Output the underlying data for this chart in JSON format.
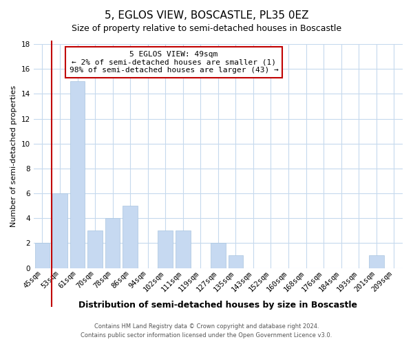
{
  "title": "5, EGLOS VIEW, BOSCASTLE, PL35 0EZ",
  "subtitle": "Size of property relative to semi-detached houses in Boscastle",
  "xlabel": "Distribution of semi-detached houses by size in Boscastle",
  "ylabel": "Number of semi-detached properties",
  "footer_line1": "Contains HM Land Registry data © Crown copyright and database right 2024.",
  "footer_line2": "Contains public sector information licensed under the Open Government Licence v3.0.",
  "bin_labels": [
    "45sqm",
    "53sqm",
    "61sqm",
    "70sqm",
    "78sqm",
    "86sqm",
    "94sqm",
    "102sqm",
    "111sqm",
    "119sqm",
    "127sqm",
    "135sqm",
    "143sqm",
    "152sqm",
    "160sqm",
    "168sqm",
    "176sqm",
    "184sqm",
    "193sqm",
    "201sqm",
    "209sqm"
  ],
  "bar_values": [
    2,
    6,
    15,
    3,
    4,
    5,
    0,
    3,
    3,
    0,
    2,
    1,
    0,
    0,
    0,
    0,
    0,
    0,
    0,
    1,
    0
  ],
  "highlight_bin_index": 0,
  "highlight_color": "#c00000",
  "bar_color": "#c6d9f1",
  "bar_edge_color": "#a8c4e0",
  "ylim": [
    0,
    18
  ],
  "yticks": [
    0,
    2,
    4,
    6,
    8,
    10,
    12,
    14,
    16,
    18
  ],
  "annotation_title": "5 EGLOS VIEW: 49sqm",
  "annotation_line1": "← 2% of semi-detached houses are smaller (1)",
  "annotation_line2": "98% of semi-detached houses are larger (43) →",
  "grid_color": "#c5d9ed",
  "background_color": "#ffffff",
  "title_fontsize": 11,
  "subtitle_fontsize": 9,
  "ylabel_fontsize": 8,
  "xlabel_fontsize": 9,
  "tick_fontsize": 7.5,
  "annotation_fontsize": 8,
  "footer_fontsize": 6
}
